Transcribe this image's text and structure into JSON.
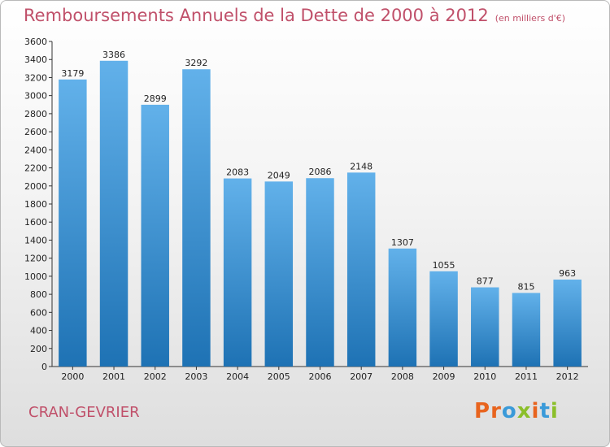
{
  "header": {
    "title": "Remboursements Annuels de la Dette de 2000 à 2012",
    "subtitle": "(en milliers d'€)"
  },
  "footer": {
    "city": "CRAN-GEVRIER",
    "logo": "Proxiti"
  },
  "colors": {
    "title": "#c0506a",
    "bar_light": "#62b1ea",
    "bar_dark": "#1e72b4",
    "axis": "#333333"
  },
  "chart_data": {
    "type": "bar",
    "title": "Remboursements Annuels de la Dette de 2000 à 2012",
    "subtitle": "(en milliers d'€)",
    "categories": [
      "2000",
      "2001",
      "2002",
      "2003",
      "2004",
      "2005",
      "2006",
      "2007",
      "2008",
      "2009",
      "2010",
      "2011",
      "2012"
    ],
    "values": [
      3179,
      3386,
      2899,
      3292,
      2083,
      2049,
      2086,
      2148,
      1307,
      1055,
      877,
      815,
      963
    ],
    "ylim": [
      0,
      3600
    ],
    "yticks": [
      0,
      200,
      400,
      600,
      800,
      1000,
      1200,
      1400,
      1600,
      1800,
      2000,
      2200,
      2400,
      2600,
      2800,
      3000,
      3200,
      3400,
      3600
    ],
    "grid": false,
    "xlabel": "",
    "ylabel": ""
  }
}
